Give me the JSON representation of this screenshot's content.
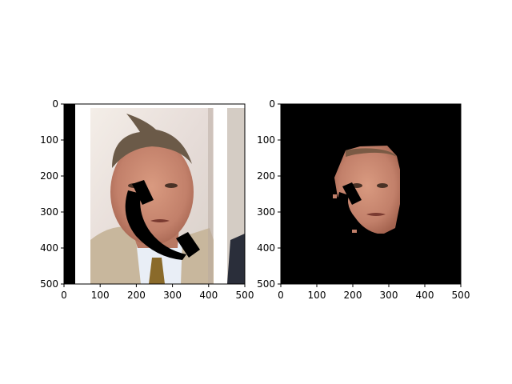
{
  "chart_data": [
    {
      "type": "image",
      "panel": "left",
      "content": "photo with black occlusion mask",
      "xlim": [
        0,
        500
      ],
      "ylim": [
        500,
        0
      ],
      "xticks": [
        "0",
        "100",
        "200",
        "300",
        "400",
        "500"
      ],
      "yticks": [
        "0",
        "100",
        "200",
        "300",
        "400",
        "500"
      ],
      "grid": false
    },
    {
      "type": "image",
      "panel": "right",
      "content": "face segmentation on black background",
      "xlim": [
        0,
        500
      ],
      "ylim": [
        500,
        0
      ],
      "xticks": [
        "0",
        "100",
        "200",
        "300",
        "400",
        "500"
      ],
      "yticks": [
        "0",
        "100",
        "200",
        "300",
        "400",
        "500"
      ],
      "grid": false
    }
  ],
  "colors": {
    "mask": "#000000",
    "skin": "#c88870",
    "coat": "#c9b9a0",
    "shirt": "#e8eef5",
    "tie": "#8a6a2a",
    "hair": "#6a5a48",
    "background_photo": "#ece6e0"
  }
}
